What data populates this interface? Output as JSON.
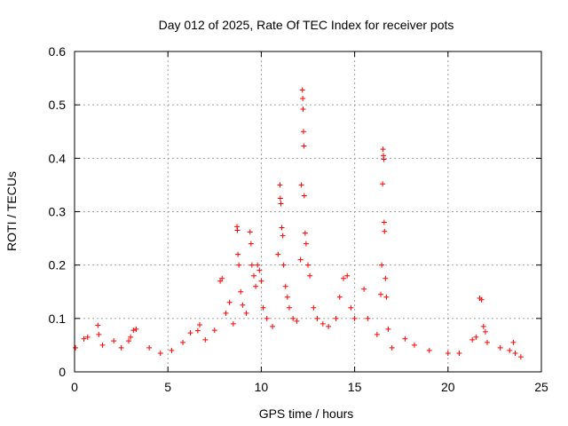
{
  "chart_data": {
    "type": "scatter",
    "title": "Day 012 of 2025, Rate Of TEC Index for receiver pots",
    "xlabel": "GPS time / hours",
    "ylabel": "ROTI / TECUs",
    "xlim": [
      0,
      25
    ],
    "ylim": [
      0,
      0.6
    ],
    "x_ticks": [
      "0",
      "5",
      "10",
      "15",
      "20",
      "25"
    ],
    "y_ticks": [
      "0",
      "0.1",
      "0.2",
      "0.3",
      "0.4",
      "0.5",
      "0.6"
    ],
    "grid": true,
    "legend": "none",
    "marker": "plus",
    "color": "#ff0000",
    "series": [
      {
        "points": [
          [
            0.05,
            0.045
          ],
          [
            0.5,
            0.062
          ],
          [
            0.7,
            0.065
          ],
          [
            1.25,
            0.087
          ],
          [
            1.3,
            0.07
          ],
          [
            1.5,
            0.05
          ],
          [
            2.1,
            0.058
          ],
          [
            2.5,
            0.045
          ],
          [
            2.9,
            0.058
          ],
          [
            3.0,
            0.065
          ],
          [
            3.15,
            0.078
          ],
          [
            3.3,
            0.08
          ],
          [
            4.0,
            0.045
          ],
          [
            4.6,
            0.035
          ],
          [
            5.2,
            0.04
          ],
          [
            5.8,
            0.055
          ],
          [
            6.2,
            0.073
          ],
          [
            6.6,
            0.077
          ],
          [
            6.7,
            0.088
          ],
          [
            7.0,
            0.06
          ],
          [
            7.5,
            0.078
          ],
          [
            7.8,
            0.17
          ],
          [
            7.9,
            0.175
          ],
          [
            8.1,
            0.11
          ],
          [
            8.3,
            0.13
          ],
          [
            8.5,
            0.09
          ],
          [
            8.7,
            0.272
          ],
          [
            8.72,
            0.265
          ],
          [
            8.75,
            0.22
          ],
          [
            8.8,
            0.2
          ],
          [
            8.9,
            0.15
          ],
          [
            9.0,
            0.125
          ],
          [
            9.2,
            0.11
          ],
          [
            9.4,
            0.262
          ],
          [
            9.45,
            0.24
          ],
          [
            9.5,
            0.2
          ],
          [
            9.6,
            0.18
          ],
          [
            9.7,
            0.16
          ],
          [
            9.8,
            0.2
          ],
          [
            9.9,
            0.19
          ],
          [
            10.0,
            0.17
          ],
          [
            10.1,
            0.12
          ],
          [
            10.3,
            0.1
          ],
          [
            10.6,
            0.085
          ],
          [
            10.9,
            0.22
          ],
          [
            11.0,
            0.35
          ],
          [
            11.02,
            0.325
          ],
          [
            11.05,
            0.315
          ],
          [
            11.1,
            0.27
          ],
          [
            11.15,
            0.255
          ],
          [
            11.2,
            0.2
          ],
          [
            11.3,
            0.16
          ],
          [
            11.4,
            0.14
          ],
          [
            11.5,
            0.12
          ],
          [
            11.7,
            0.1
          ],
          [
            11.9,
            0.095
          ],
          [
            12.1,
            0.21
          ],
          [
            12.15,
            0.35
          ],
          [
            12.2,
            0.528
          ],
          [
            12.22,
            0.512
          ],
          [
            12.24,
            0.492
          ],
          [
            12.26,
            0.45
          ],
          [
            12.28,
            0.423
          ],
          [
            12.3,
            0.33
          ],
          [
            12.35,
            0.26
          ],
          [
            12.4,
            0.24
          ],
          [
            12.5,
            0.2
          ],
          [
            12.6,
            0.18
          ],
          [
            12.8,
            0.12
          ],
          [
            13.0,
            0.1
          ],
          [
            13.3,
            0.09
          ],
          [
            13.6,
            0.085
          ],
          [
            14.0,
            0.1
          ],
          [
            14.2,
            0.14
          ],
          [
            14.4,
            0.175
          ],
          [
            14.6,
            0.18
          ],
          [
            14.8,
            0.12
          ],
          [
            15.0,
            0.1
          ],
          [
            15.5,
            0.155
          ],
          [
            15.7,
            0.1
          ],
          [
            16.2,
            0.07
          ],
          [
            16.4,
            0.145
          ],
          [
            16.45,
            0.2
          ],
          [
            16.5,
            0.352
          ],
          [
            16.52,
            0.417
          ],
          [
            16.54,
            0.405
          ],
          [
            16.56,
            0.398
          ],
          [
            16.58,
            0.28
          ],
          [
            16.6,
            0.263
          ],
          [
            16.65,
            0.175
          ],
          [
            16.7,
            0.14
          ],
          [
            16.8,
            0.08
          ],
          [
            17.0,
            0.045
          ],
          [
            17.7,
            0.062
          ],
          [
            18.2,
            0.05
          ],
          [
            19.0,
            0.04
          ],
          [
            20.0,
            0.035
          ],
          [
            20.6,
            0.035
          ],
          [
            21.3,
            0.06
          ],
          [
            21.5,
            0.065
          ],
          [
            21.7,
            0.138
          ],
          [
            21.8,
            0.135
          ],
          [
            21.9,
            0.085
          ],
          [
            22.0,
            0.075
          ],
          [
            22.1,
            0.055
          ],
          [
            22.8,
            0.045
          ],
          [
            23.3,
            0.04
          ],
          [
            23.5,
            0.055
          ],
          [
            23.6,
            0.035
          ],
          [
            23.9,
            0.028
          ]
        ]
      }
    ]
  }
}
